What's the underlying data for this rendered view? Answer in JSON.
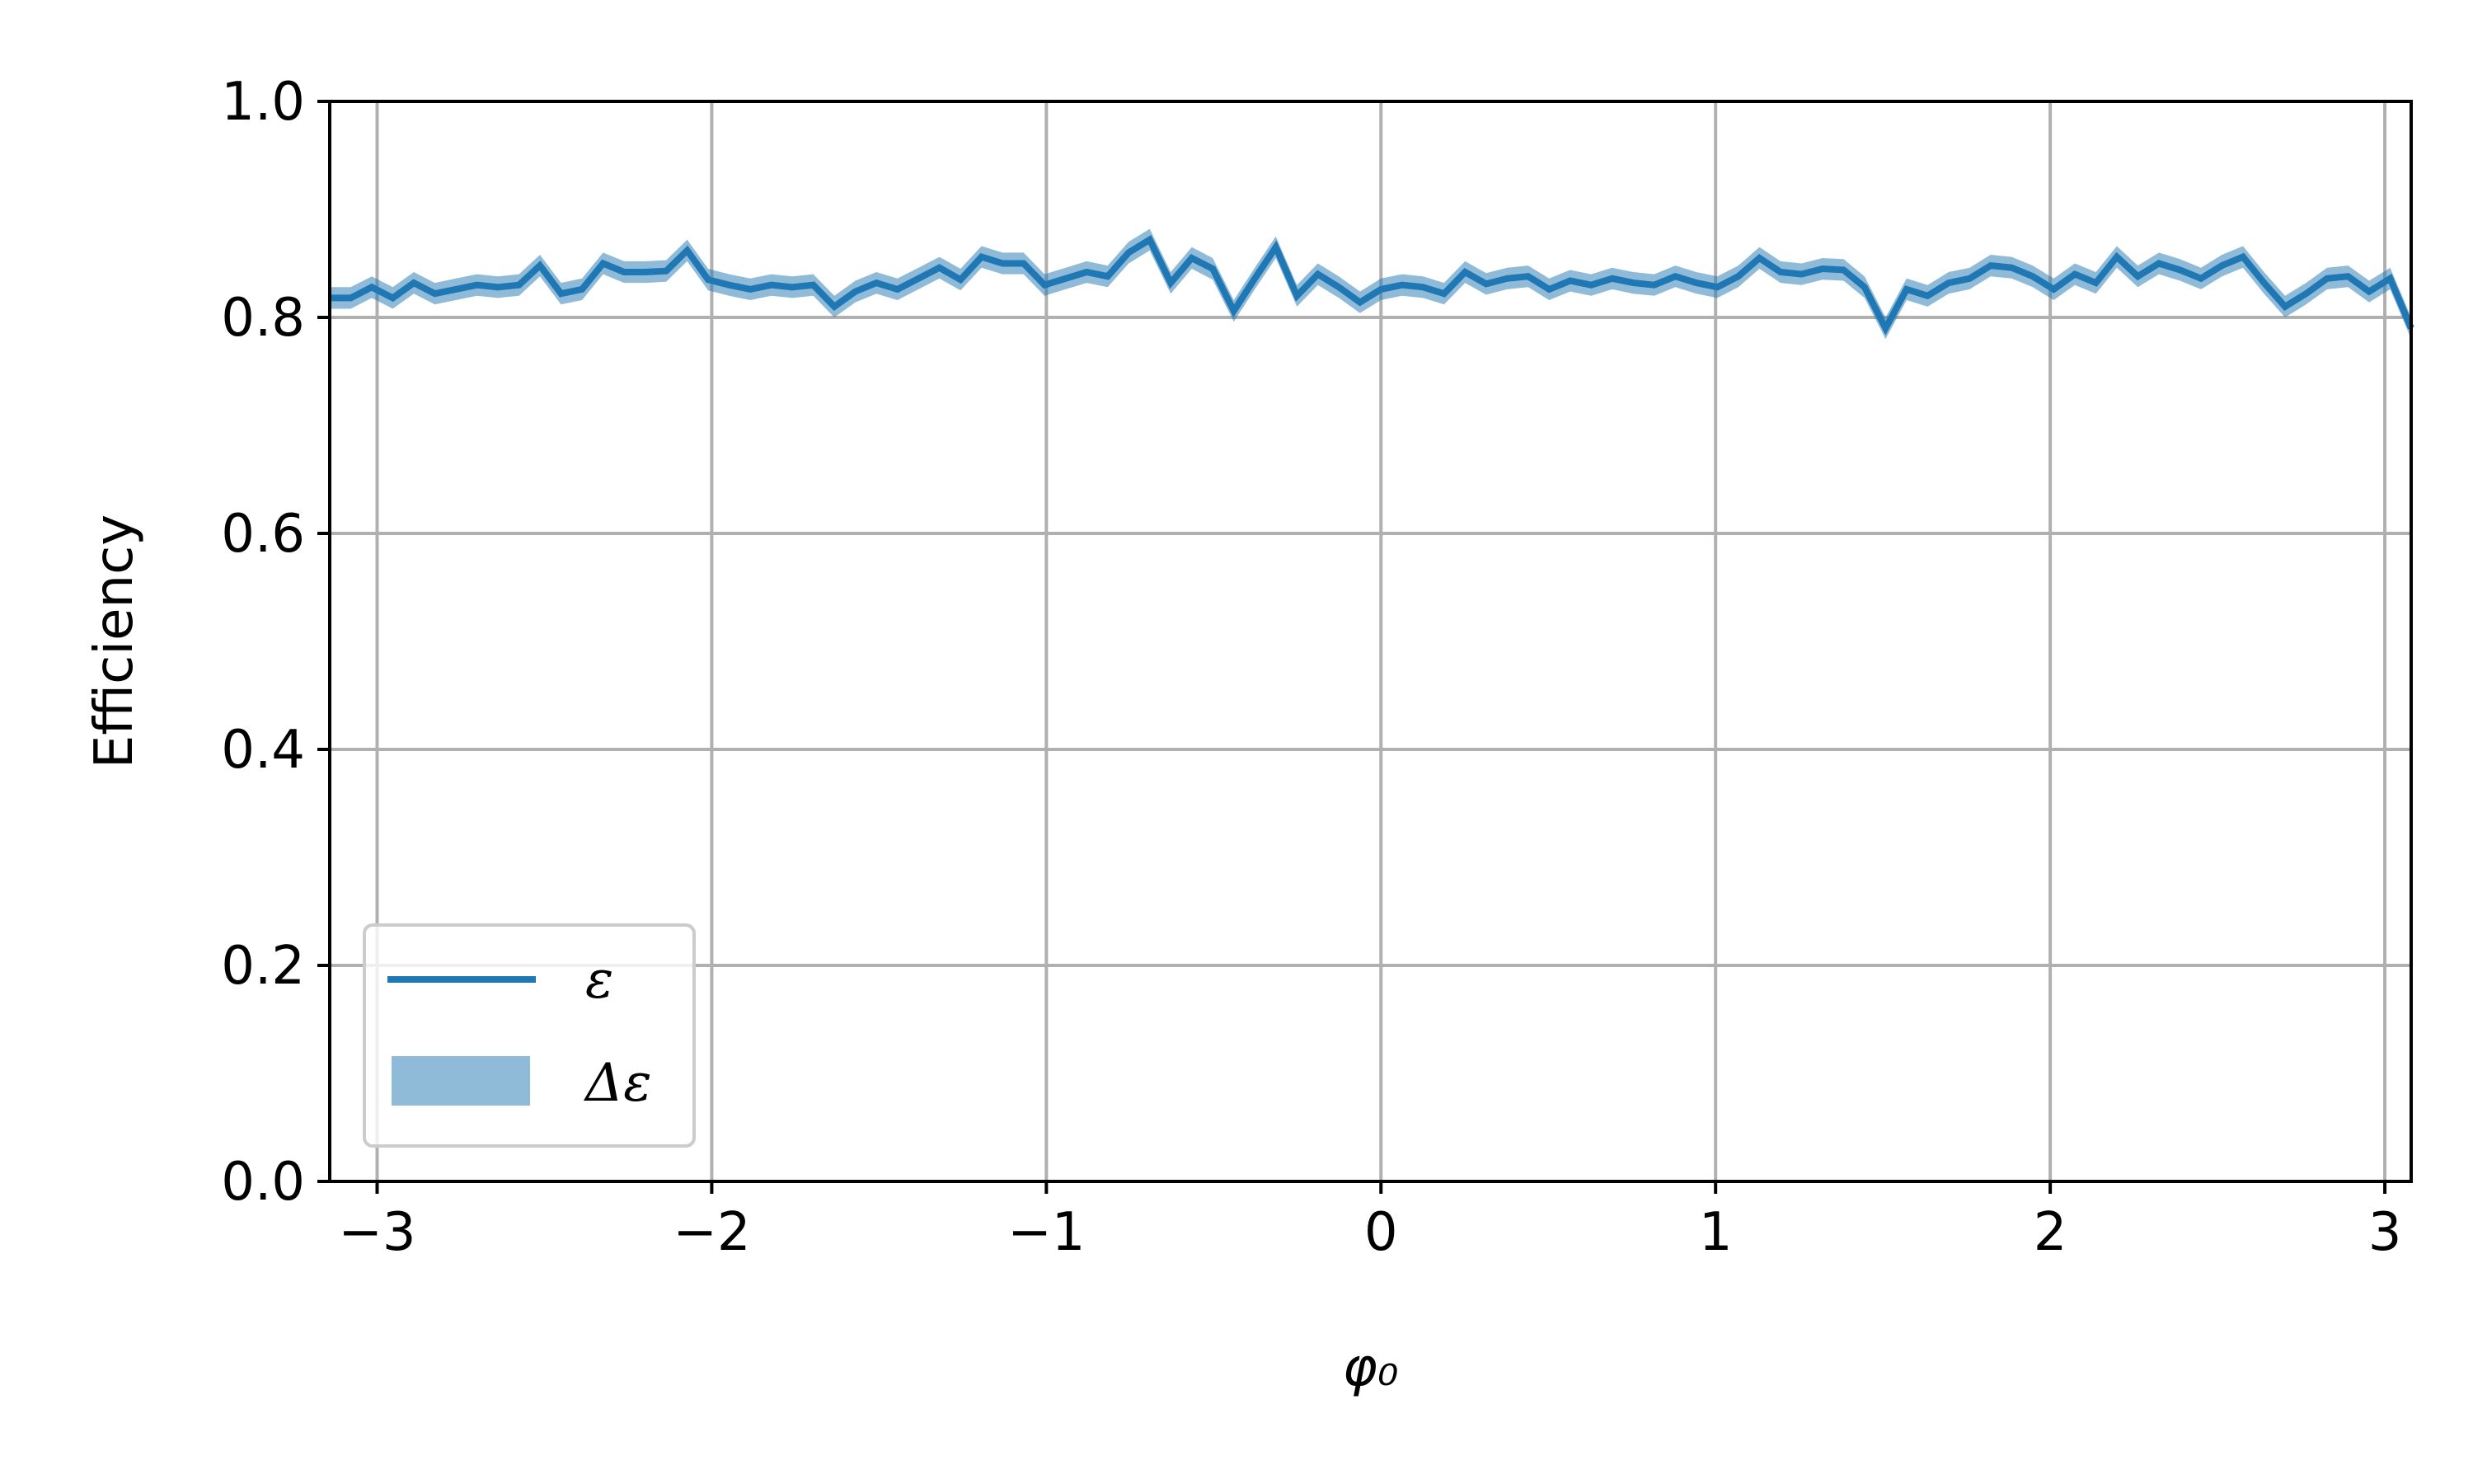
{
  "colors": {
    "line": "#1f77b4",
    "band": "#1f77b4",
    "grid": "#b0b0b0",
    "axis": "#000000",
    "legend_border": "#cccccc"
  },
  "chart_data": {
    "type": "line",
    "xlabel": "φ₀",
    "ylabel": "Efficiency",
    "xlim": [
      -3.1416,
      3.0787
    ],
    "ylim": [
      0.0,
      1.0
    ],
    "xticks": [
      -3,
      -2,
      -1,
      0,
      1,
      2,
      3
    ],
    "xtick_labels": [
      "−3",
      "−2",
      "−1",
      "0",
      "1",
      "2",
      "3"
    ],
    "yticks": [
      0.0,
      0.2,
      0.4,
      0.6,
      0.8,
      1.0
    ],
    "ytick_labels": [
      "0.0",
      "0.2",
      "0.4",
      "0.6",
      "0.8",
      "1.0"
    ],
    "grid": true,
    "legend": {
      "placement": "lower-left",
      "entries": [
        {
          "label": "ε",
          "kind": "line"
        },
        {
          "label": "Δε",
          "kind": "band"
        }
      ]
    },
    "series": [
      {
        "name": "ε",
        "band_name": "Δε",
        "band_halfwidth": 0.01,
        "x": [
          -3.1416,
          -3.0788,
          -3.0159,
          -2.9531,
          -2.8903,
          -2.8274,
          -2.7646,
          -2.7018,
          -2.6389,
          -2.5761,
          -2.5133,
          -2.4504,
          -2.3876,
          -2.3248,
          -2.2619,
          -2.1991,
          -2.1363,
          -2.0735,
          -2.0106,
          -1.9478,
          -1.885,
          -1.8221,
          -1.7593,
          -1.6965,
          -1.6336,
          -1.5708,
          -1.508,
          -1.4451,
          -1.3823,
          -1.3195,
          -1.2566,
          -1.1938,
          -1.131,
          -1.0681,
          -1.0053,
          -0.9425,
          -0.8796,
          -0.8168,
          -0.754,
          -0.6912,
          -0.6283,
          -0.5655,
          -0.5027,
          -0.4398,
          -0.377,
          -0.3142,
          -0.2513,
          -0.1885,
          -0.1257,
          -0.0628,
          0.0,
          0.0628,
          0.1257,
          0.1885,
          0.2513,
          0.3142,
          0.377,
          0.4398,
          0.5027,
          0.5655,
          0.6283,
          0.6912,
          0.754,
          0.8168,
          0.8796,
          0.9425,
          1.0053,
          1.0681,
          1.131,
          1.1938,
          1.2566,
          1.3195,
          1.3823,
          1.4451,
          1.508,
          1.5708,
          1.6336,
          1.6965,
          1.7593,
          1.8221,
          1.885,
          1.9478,
          2.0106,
          2.0735,
          2.1363,
          2.1991,
          2.2619,
          2.3248,
          2.3876,
          2.4504,
          2.5133,
          2.5761,
          2.6389,
          2.7018,
          2.7646,
          2.8274,
          2.8903,
          2.9531,
          3.0159,
          3.0787
        ],
        "y": [
          0.818,
          0.818,
          0.828,
          0.818,
          0.832,
          0.822,
          0.826,
          0.83,
          0.828,
          0.83,
          0.848,
          0.822,
          0.826,
          0.85,
          0.842,
          0.842,
          0.843,
          0.862,
          0.835,
          0.83,
          0.826,
          0.83,
          0.828,
          0.83,
          0.81,
          0.824,
          0.832,
          0.826,
          0.836,
          0.846,
          0.835,
          0.856,
          0.85,
          0.85,
          0.83,
          0.836,
          0.842,
          0.838,
          0.86,
          0.872,
          0.832,
          0.855,
          0.845,
          0.806,
          0.836,
          0.865,
          0.82,
          0.84,
          0.828,
          0.814,
          0.826,
          0.83,
          0.828,
          0.822,
          0.842,
          0.831,
          0.836,
          0.838,
          0.826,
          0.834,
          0.83,
          0.836,
          0.832,
          0.83,
          0.838,
          0.832,
          0.828,
          0.838,
          0.855,
          0.842,
          0.84,
          0.845,
          0.844,
          0.828,
          0.79,
          0.826,
          0.82,
          0.832,
          0.836,
          0.848,
          0.846,
          0.838,
          0.826,
          0.84,
          0.832,
          0.856,
          0.838,
          0.85,
          0.844,
          0.836,
          0.848,
          0.856,
          0.832,
          0.81,
          0.822,
          0.836,
          0.838,
          0.824,
          0.836,
          0.79
        ]
      }
    ]
  }
}
